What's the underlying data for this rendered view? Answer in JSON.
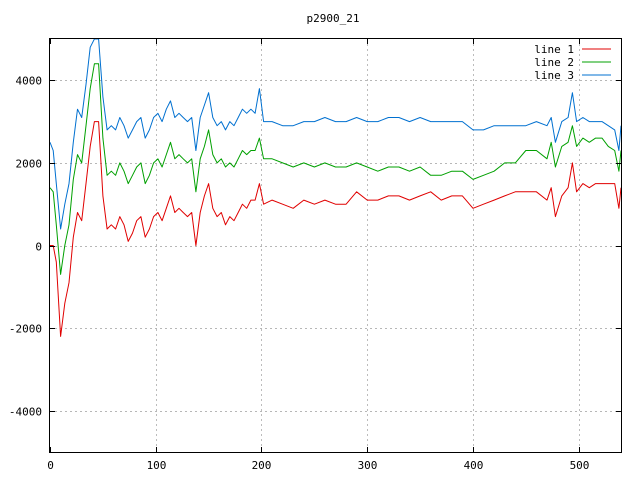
{
  "chart_data": {
    "type": "line",
    "title": "p2900_21",
    "xlabel": "",
    "ylabel": "",
    "xlim": [
      0,
      540
    ],
    "ylim": [
      -5000,
      5000
    ],
    "x_ticks": [
      0,
      100,
      200,
      300,
      400,
      500
    ],
    "y_ticks": [
      -4000,
      -2000,
      0,
      2000,
      4000
    ],
    "grid": true,
    "legend_position": "top-right",
    "colors": {
      "line 1": "#e00000",
      "line 2": "#00a000",
      "line 3": "#0070d0"
    },
    "series": [
      {
        "name": "line 1",
        "x": [
          0,
          3,
          6,
          10,
          14,
          18,
          22,
          26,
          30,
          34,
          38,
          42,
          46,
          50,
          54,
          58,
          62,
          66,
          70,
          74,
          78,
          82,
          86,
          90,
          94,
          98,
          102,
          106,
          110,
          114,
          118,
          122,
          126,
          130,
          134,
          138,
          142,
          146,
          150,
          154,
          158,
          162,
          166,
          170,
          174,
          178,
          182,
          186,
          190,
          194,
          198,
          202,
          210,
          220,
          230,
          240,
          250,
          260,
          270,
          280,
          290,
          300,
          310,
          320,
          330,
          340,
          350,
          360,
          370,
          380,
          390,
          400,
          410,
          420,
          430,
          440,
          450,
          460,
          470,
          474,
          478,
          484,
          490,
          494,
          498,
          504,
          510,
          516,
          522,
          528,
          534,
          538,
          540
        ],
        "y": [
          0,
          0,
          -400,
          -2200,
          -1400,
          -900,
          200,
          800,
          600,
          1500,
          2400,
          3000,
          3000,
          1200,
          400,
          500,
          400,
          700,
          500,
          100,
          300,
          600,
          700,
          200,
          400,
          700,
          800,
          600,
          900,
          1200,
          800,
          900,
          800,
          700,
          800,
          0,
          800,
          1200,
          1500,
          900,
          700,
          800,
          500,
          700,
          600,
          800,
          1000,
          900,
          1100,
          1100,
          1500,
          1000,
          1100,
          1000,
          900,
          1100,
          1000,
          1100,
          1000,
          1000,
          1300,
          1100,
          1100,
          1200,
          1200,
          1100,
          1200,
          1300,
          1100,
          1200,
          1200,
          900,
          1000,
          1100,
          1200,
          1300,
          1300,
          1300,
          1100,
          1400,
          700,
          1200,
          1400,
          2000,
          1300,
          1500,
          1400,
          1500,
          1500,
          1500,
          1500,
          900,
          1400
        ]
      },
      {
        "name": "line 2",
        "x": [
          0,
          3,
          6,
          10,
          14,
          18,
          22,
          26,
          30,
          34,
          38,
          42,
          46,
          50,
          54,
          58,
          62,
          66,
          70,
          74,
          78,
          82,
          86,
          90,
          94,
          98,
          102,
          106,
          110,
          114,
          118,
          122,
          126,
          130,
          134,
          138,
          142,
          146,
          150,
          154,
          158,
          162,
          166,
          170,
          174,
          178,
          182,
          186,
          190,
          194,
          198,
          202,
          210,
          220,
          230,
          240,
          250,
          260,
          270,
          280,
          290,
          300,
          310,
          320,
          330,
          340,
          350,
          360,
          370,
          380,
          390,
          400,
          410,
          420,
          430,
          440,
          450,
          460,
          470,
          474,
          478,
          484,
          490,
          494,
          498,
          504,
          510,
          516,
          522,
          528,
          534,
          538,
          540
        ],
        "y": [
          1400,
          1300,
          500,
          -700,
          0,
          500,
          1600,
          2200,
          2000,
          2900,
          3800,
          4400,
          4400,
          2600,
          1700,
          1800,
          1700,
          2000,
          1800,
          1500,
          1700,
          1900,
          2000,
          1500,
          1700,
          2000,
          2100,
          1900,
          2200,
          2500,
          2100,
          2200,
          2100,
          2000,
          2100,
          1300,
          2100,
          2400,
          2800,
          2200,
          2000,
          2100,
          1900,
          2000,
          1900,
          2100,
          2300,
          2200,
          2300,
          2300,
          2600,
          2100,
          2100,
          2000,
          1900,
          2000,
          1900,
          2000,
          1900,
          1900,
          2000,
          1900,
          1800,
          1900,
          1900,
          1800,
          1900,
          1700,
          1700,
          1800,
          1800,
          1600,
          1700,
          1800,
          2000,
          2000,
          2300,
          2300,
          2100,
          2500,
          1900,
          2400,
          2500,
          2900,
          2400,
          2600,
          2500,
          2600,
          2600,
          2400,
          2300,
          1800,
          2300
        ]
      },
      {
        "name": "line 3",
        "x": [
          0,
          3,
          6,
          10,
          14,
          18,
          22,
          26,
          30,
          34,
          38,
          42,
          46,
          50,
          54,
          58,
          62,
          66,
          70,
          74,
          78,
          82,
          86,
          90,
          94,
          98,
          102,
          106,
          110,
          114,
          118,
          122,
          126,
          130,
          134,
          138,
          142,
          146,
          150,
          154,
          158,
          162,
          166,
          170,
          174,
          178,
          182,
          186,
          190,
          194,
          198,
          202,
          210,
          220,
          230,
          240,
          250,
          260,
          270,
          280,
          290,
          300,
          310,
          320,
          330,
          340,
          350,
          360,
          370,
          380,
          390,
          400,
          410,
          420,
          430,
          440,
          450,
          460,
          470,
          474,
          478,
          484,
          490,
          494,
          498,
          504,
          510,
          516,
          522,
          528,
          534,
          538,
          540
        ],
        "y": [
          2500,
          2300,
          1500,
          400,
          1000,
          1500,
          2500,
          3300,
          3100,
          3900,
          4800,
          5000,
          5000,
          3600,
          2800,
          2900,
          2800,
          3100,
          2900,
          2600,
          2800,
          3000,
          3100,
          2600,
          2800,
          3100,
          3200,
          3000,
          3300,
          3500,
          3100,
          3200,
          3100,
          3000,
          3100,
          2300,
          3100,
          3400,
          3700,
          3100,
          2900,
          3000,
          2800,
          3000,
          2900,
          3100,
          3300,
          3200,
          3300,
          3200,
          3800,
          3000,
          3000,
          2900,
          2900,
          3000,
          3000,
          3100,
          3000,
          3000,
          3100,
          3000,
          3000,
          3100,
          3100,
          3000,
          3100,
          3000,
          3000,
          3000,
          3000,
          2800,
          2800,
          2900,
          2900,
          2900,
          2900,
          3000,
          2900,
          3100,
          2500,
          3000,
          3100,
          3700,
          3000,
          3100,
          3000,
          3000,
          3000,
          2900,
          2800,
          2300,
          2900
        ]
      }
    ]
  }
}
